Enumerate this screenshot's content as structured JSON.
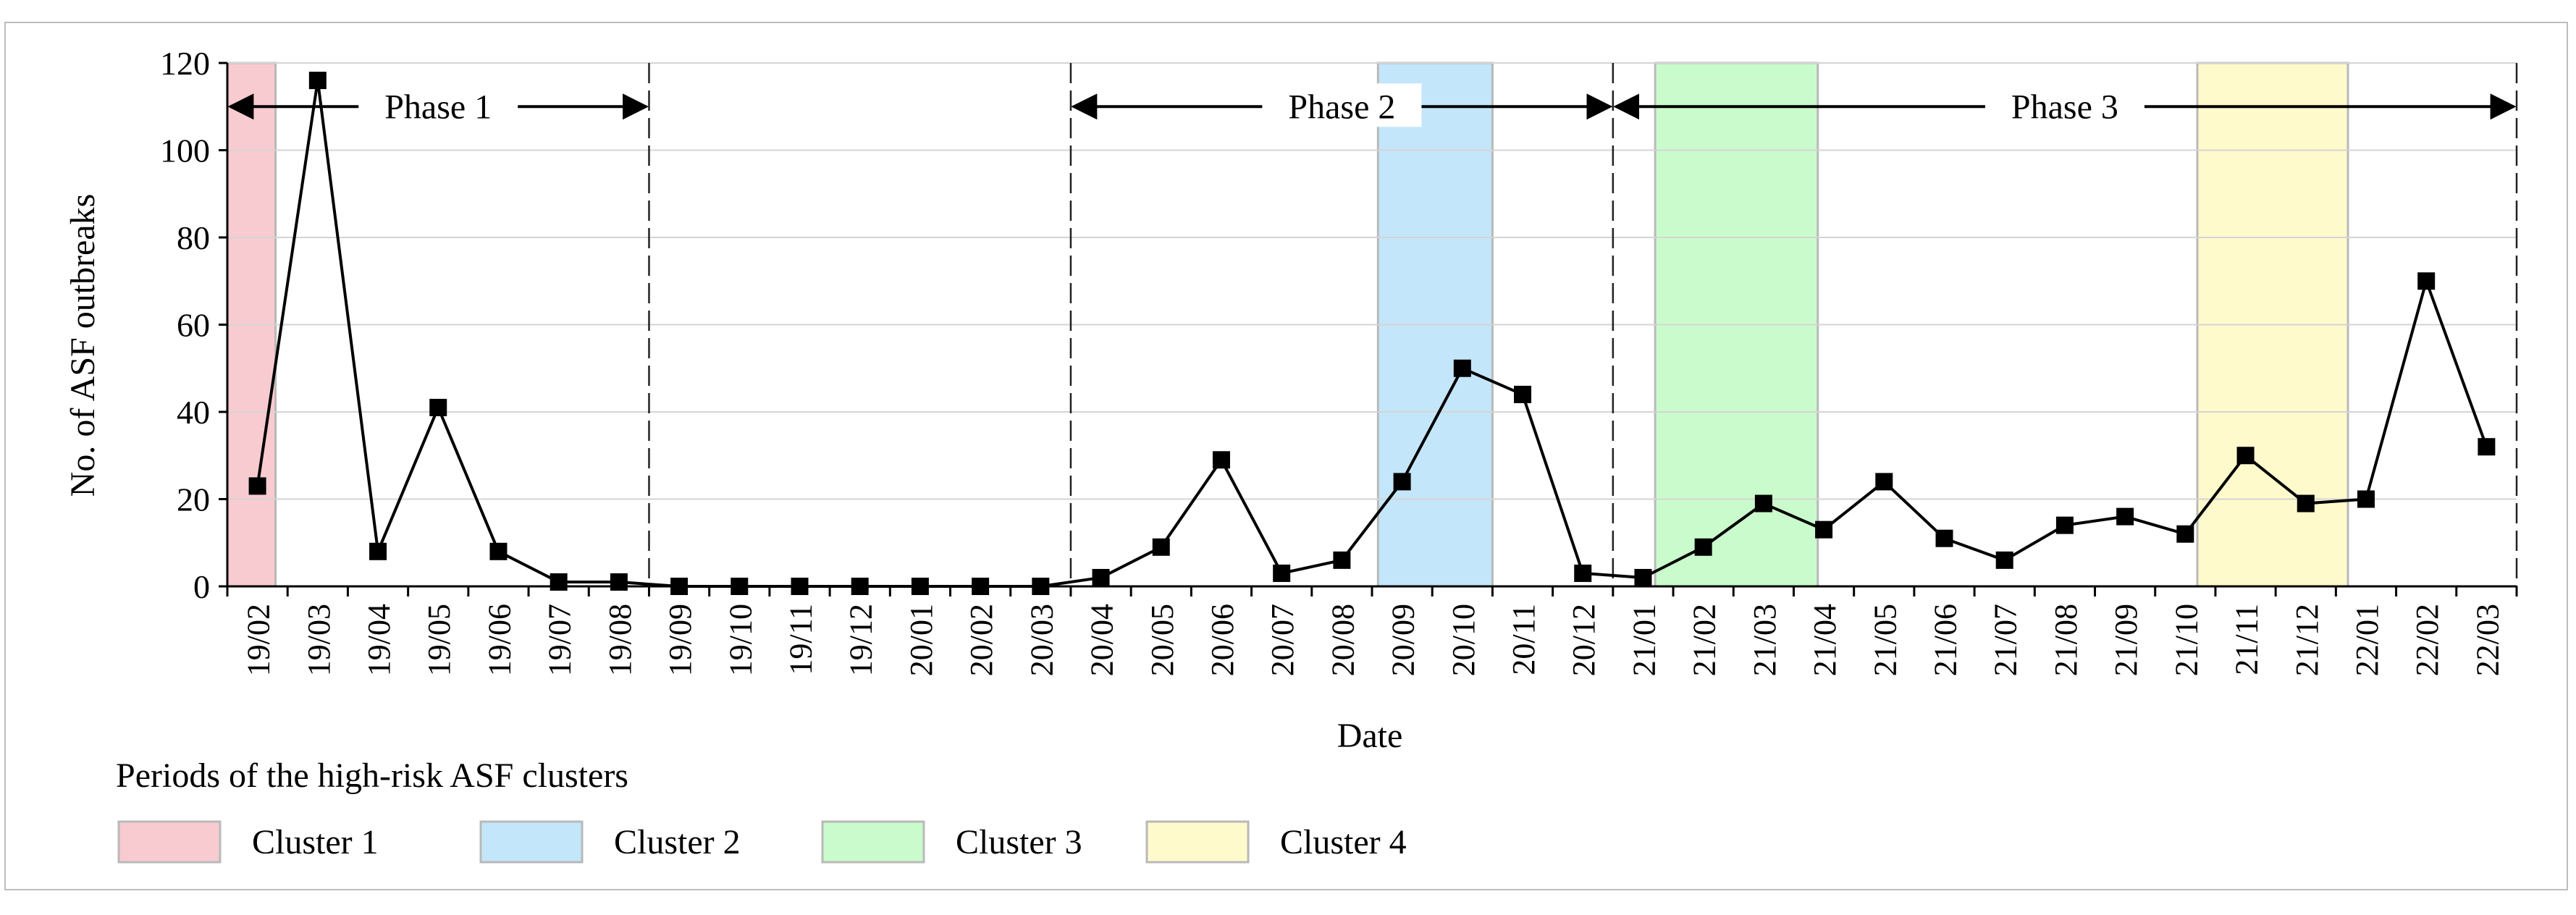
{
  "chart_data": {
    "type": "line",
    "xlabel": "Date",
    "ylabel": "No. of ASF outbreaks",
    "ylim": [
      0,
      120
    ],
    "yticks": [
      0,
      20,
      40,
      60,
      80,
      100,
      120
    ],
    "grid": true,
    "categories": [
      "19/02",
      "19/03",
      "19/04",
      "19/05",
      "19/06",
      "19/07",
      "19/08",
      "19/09",
      "19/10",
      "19/11",
      "19/12",
      "20/01",
      "20/02",
      "20/03",
      "20/04",
      "20/05",
      "20/06",
      "20/07",
      "20/08",
      "20/09",
      "20/10",
      "20/11",
      "20/12",
      "21/01",
      "21/02",
      "21/03",
      "21/04",
      "21/05",
      "21/06",
      "21/07",
      "21/08",
      "21/09",
      "21/10",
      "21/11",
      "21/12",
      "22/01",
      "22/02",
      "22/03"
    ],
    "series": [
      {
        "values": [
          23,
          116,
          8,
          41,
          8,
          1,
          1,
          0,
          0,
          0,
          0,
          0,
          0,
          0,
          2,
          9,
          29,
          3,
          6,
          24,
          50,
          44,
          3,
          2,
          9,
          19,
          13,
          24,
          11,
          6,
          14,
          16,
          12,
          30,
          19,
          20,
          70,
          32
        ],
        "color": "#000000"
      }
    ],
    "phases": [
      {
        "label": "Phase 1",
        "start_index": 0,
        "end_index": 6
      },
      {
        "label": "Phase 2",
        "start_index": 14,
        "end_index": 22
      },
      {
        "label": "Phase 3",
        "start_index": 23,
        "end_index": 37
      }
    ],
    "clusters": [
      {
        "label": "Cluster 1",
        "start": 0.0,
        "end": 0.8,
        "color": "#f8cbd0"
      },
      {
        "label": "Cluster 2",
        "start": 19.1,
        "end": 21.0,
        "color": "#c4e6fa"
      },
      {
        "label": "Cluster 3",
        "start": 23.7,
        "end": 26.4,
        "color": "#cafbcc"
      },
      {
        "label": "Cluster 4",
        "start": 32.7,
        "end": 35.2,
        "color": "#fefacc"
      }
    ],
    "legend": {
      "title": "Periods of the high-risk ASF clusters",
      "placement": "bottom-left"
    }
  }
}
